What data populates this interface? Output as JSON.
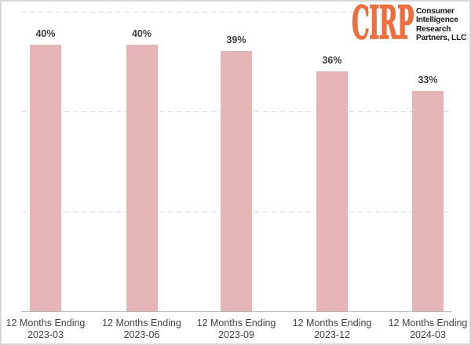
{
  "logo": {
    "mark": "CIRP",
    "mark_color": "#ed6f3f",
    "text_color": "#161616",
    "lines": [
      "Consumer",
      "Intelligence",
      "Research",
      "Partners, LLC"
    ]
  },
  "chart_data": {
    "type": "bar",
    "title": "",
    "xlabel": "",
    "ylabel": "",
    "category_prefix": "12 Months Ending",
    "categories": [
      "2023-03",
      "2023-06",
      "2023-09",
      "2023-12",
      "2024-03"
    ],
    "values": [
      40,
      40,
      39,
      36,
      33
    ],
    "value_labels": [
      "40%",
      "40%",
      "39%",
      "36%",
      "33%"
    ],
    "ylim": [
      0,
      45
    ],
    "gridlines": [
      15,
      30,
      45
    ],
    "grid_style": "dashed",
    "legend": "none",
    "bar_color": "#e6b6b7",
    "value_label_color": "#3f3f3f",
    "tick_label_color": "#424242",
    "gridline_color": "#d9d9d9",
    "axis_color": "#b5b5b5"
  }
}
